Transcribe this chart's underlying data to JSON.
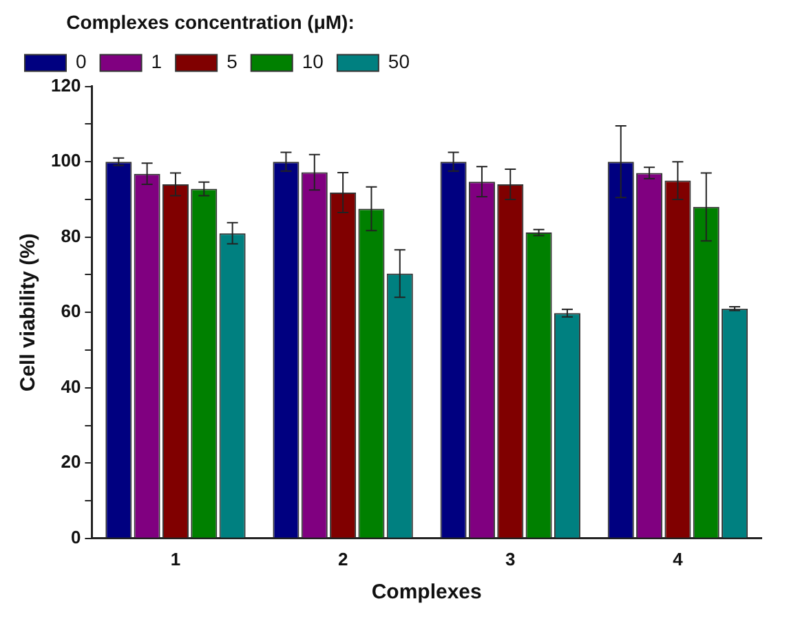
{
  "chart_data": {
    "type": "bar",
    "xlabel": "Complexes",
    "ylabel": "Cell viability (%)",
    "legend_title": "Complexes concentration (μM):",
    "legend": "top left",
    "grid": false,
    "categories": [
      "1",
      "2",
      "3",
      "4"
    ],
    "series": [
      {
        "name": "0",
        "color": "#000080",
        "values": [
          100,
          100,
          100,
          100
        ],
        "errors": [
          1,
          2.5,
          2.5,
          9.5
        ]
      },
      {
        "name": "1",
        "color": "#800080",
        "values": [
          96.8,
          97.2,
          94.7,
          97
        ],
        "errors": [
          2.8,
          4.7,
          4,
          1.5
        ]
      },
      {
        "name": "5",
        "color": "#800000",
        "values": [
          94,
          91.8,
          94,
          95
        ],
        "errors": [
          3,
          5.3,
          4,
          5
        ]
      },
      {
        "name": "10",
        "color": "#008000",
        "values": [
          92.8,
          87.5,
          81.2,
          88
        ],
        "errors": [
          1.8,
          5.8,
          0.8,
          9
        ]
      },
      {
        "name": "50",
        "color": "#008080",
        "values": [
          81,
          70.3,
          59.8,
          61
        ],
        "errors": [
          2.8,
          6.3,
          1,
          0.5
        ]
      }
    ],
    "ylim": [
      0,
      120
    ],
    "yticks": [
      0,
      {
        "value": 10,
        "label": null
      },
      20,
      {
        "value": 30,
        "label": null
      },
      40,
      {
        "value": 50,
        "label": null
      },
      60,
      {
        "value": 70,
        "label": null
      },
      80,
      {
        "value": 90,
        "label": null
      },
      100,
      {
        "value": 110,
        "label": null
      },
      120
    ]
  }
}
